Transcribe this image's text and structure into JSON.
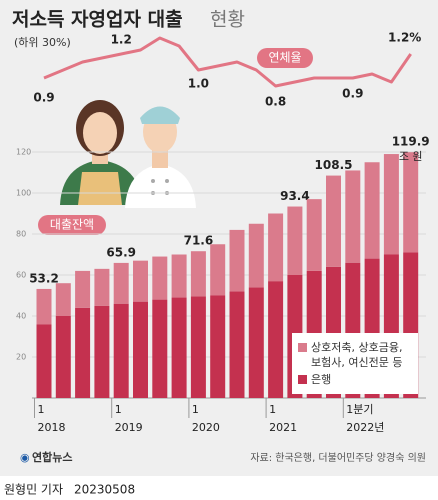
{
  "header": {
    "title": "저소득 자영업자 대출",
    "title_suffix": "현황",
    "subtitle": "(하위 30%)"
  },
  "chart_data": [
    {
      "type": "bar",
      "stacked": true,
      "annotation": "대출잔액",
      "unit_label": "조 원",
      "categories": [
        "1",
        null,
        null,
        null,
        "1",
        null,
        null,
        null,
        "1",
        null,
        null,
        null,
        "1",
        null,
        null,
        null,
        "1분기",
        null,
        null,
        null
      ],
      "category_years": [
        "2018",
        null,
        null,
        null,
        "2019",
        null,
        null,
        null,
        "2020",
        null,
        null,
        null,
        "2021",
        null,
        null,
        null,
        "2022년",
        null,
        null,
        null
      ],
      "series": [
        {
          "name": "은행",
          "color": "#c4314f",
          "values": [
            36,
            40,
            44,
            45,
            46,
            47,
            48,
            49,
            49.5,
            50,
            52,
            54,
            57,
            60,
            62,
            64,
            66,
            68,
            70,
            71
          ]
        },
        {
          "name": "상호저축, 상호금융, 보험사, 여신전문 등",
          "color": "#da7b8c",
          "values": [
            17.2,
            16,
            18,
            18,
            19.9,
            20,
            21,
            21,
            22.1,
            25,
            30,
            31,
            33,
            33.4,
            35,
            44.5,
            45,
            47,
            49,
            48.9
          ]
        }
      ],
      "totals": [
        53.2,
        null,
        null,
        null,
        65.9,
        null,
        null,
        null,
        71.6,
        null,
        null,
        null,
        null,
        93.4,
        null,
        108.5,
        null,
        null,
        null,
        119.9
      ],
      "ylim": [
        0,
        120
      ],
      "yticks": [
        20,
        40,
        60,
        80,
        100,
        120
      ],
      "grid": true
    },
    {
      "type": "line",
      "title": "연체율",
      "color": "#e27584",
      "values": [
        0.9,
        1.0,
        1.1,
        1.15,
        1.2,
        1.25,
        1.4,
        1.3,
        1.0,
        1.05,
        1.1,
        1.0,
        0.8,
        0.85,
        0.9,
        0.9,
        0.9,
        0.95,
        0.85,
        1.2
      ],
      "value_labels": [
        "0.9",
        null,
        null,
        null,
        "1.2",
        null,
        null,
        null,
        "1.0",
        null,
        null,
        null,
        "0.8",
        null,
        null,
        null,
        "0.9",
        null,
        null,
        "1.2%"
      ],
      "ylim": [
        0.5,
        1.5
      ]
    }
  ],
  "footer": {
    "logo": "연합뉴스",
    "source": "자료: 한국은행, 더불어민주당 양경숙 의원",
    "byline": "원형민 기자",
    "date": "20230508"
  }
}
